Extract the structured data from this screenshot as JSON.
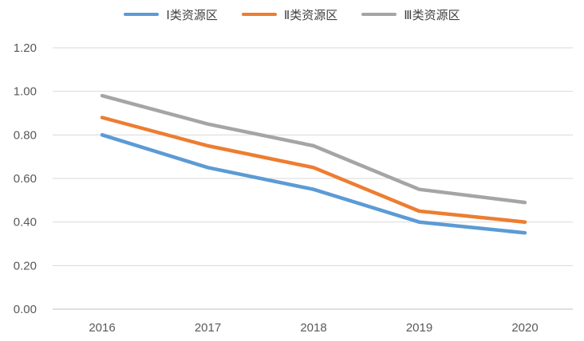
{
  "chart_data": {
    "type": "line",
    "title": "",
    "xlabel": "",
    "ylabel": "",
    "categories": [
      "2016",
      "2017",
      "2018",
      "2019",
      "2020"
    ],
    "series": [
      {
        "name": "Ⅰ类资源区",
        "color": "#5B9BD5",
        "values": [
          0.8,
          0.65,
          0.55,
          0.4,
          0.35
        ]
      },
      {
        "name": "Ⅱ类资源区",
        "color": "#ED7D31",
        "values": [
          0.88,
          0.75,
          0.65,
          0.45,
          0.4
        ]
      },
      {
        "name": "Ⅲ类资源区",
        "color": "#A5A5A5",
        "values": [
          0.98,
          0.85,
          0.75,
          0.55,
          0.49
        ]
      }
    ],
    "ylim": [
      0.0,
      1.2
    ],
    "y_tick_labels": [
      "1.20",
      "1.00",
      "0.80",
      "0.60",
      "0.40",
      "0.20",
      "0.00"
    ],
    "grid": true,
    "legend_position": "top"
  },
  "styles": {
    "background_color": "#FFFFFF",
    "gridline_color": "#D9D9D9",
    "axis_line_color": "#BFBFBF",
    "tick_label_color": "#595959",
    "legend_text_color": "#404040"
  }
}
